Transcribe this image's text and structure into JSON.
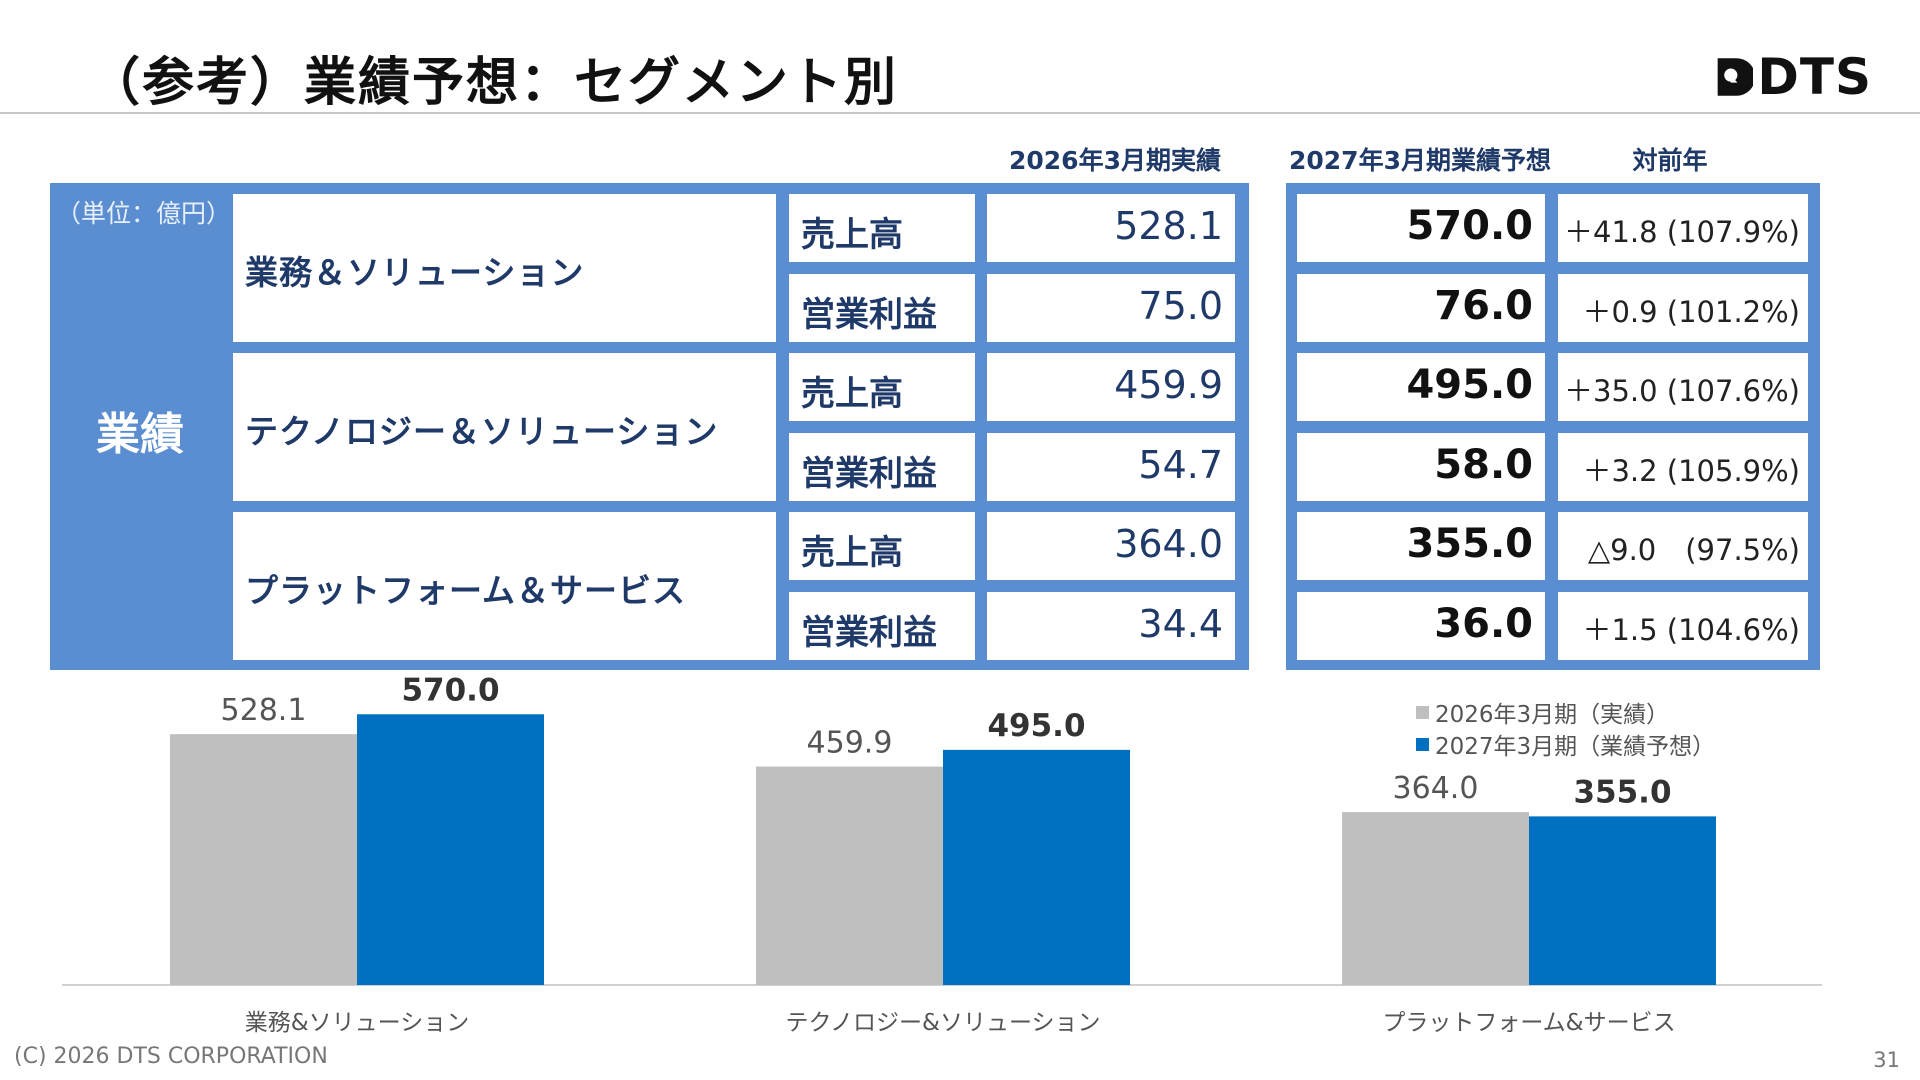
{
  "title": "（参考）業績予想：セグメント別",
  "logo": {
    "text": "DTS"
  },
  "header": {
    "actual": "2026年3月期実績",
    "forecast": "2027年3月期業績予想",
    "yoy": "対前年"
  },
  "unit": "（単位：億円）",
  "row_group_label": "業績",
  "segments": [
    {
      "name": "業務＆ソリューション",
      "rows": [
        {
          "metric": "売上高",
          "actual": "528.1",
          "forecast": "570.0",
          "yoy": "＋41.8 (107.9%)"
        },
        {
          "metric": "営業利益",
          "actual": "75.0",
          "forecast": "76.0",
          "yoy": "＋0.9 (101.2%)"
        }
      ]
    },
    {
      "name": "テクノロジー＆ソリューション",
      "rows": [
        {
          "metric": "売上高",
          "actual": "459.9",
          "forecast": "495.0",
          "yoy": "＋35.0 (107.6%)"
        },
        {
          "metric": "営業利益",
          "actual": "54.7",
          "forecast": "58.0",
          "yoy": "＋3.2 (105.9%)"
        }
      ]
    },
    {
      "name": "プラットフォーム＆サービス",
      "rows": [
        {
          "metric": "売上高",
          "actual": "364.0",
          "forecast": "355.0",
          "yoy": "△9.0　(97.5%)"
        },
        {
          "metric": "営業利益",
          "actual": "34.4",
          "forecast": "36.0",
          "yoy": "＋1.5 (104.6%)"
        }
      ]
    }
  ],
  "chart_data": {
    "type": "bar",
    "categories": [
      "業務&ソリューション",
      "テクノロジー&ソリューション",
      "プラットフォーム&サービス"
    ],
    "series": [
      {
        "name": "2026年3月期（実績）",
        "values": [
          528.1,
          459.9,
          364.0
        ],
        "color": "#bfbfbf",
        "label_color": "#555555",
        "label_bold": false
      },
      {
        "name": "2027年3月期（業績予想）",
        "values": [
          570.0,
          495.0,
          355.0
        ],
        "color": "#0070c0",
        "label_color": "#333333",
        "label_bold": true
      }
    ],
    "ylim": [
      0,
      700
    ],
    "grid": false,
    "legend": "top-right",
    "title": "",
    "xlabel": "",
    "ylabel": ""
  },
  "footer": {
    "copyright": "(C) 2026 DTS CORPORATION",
    "page": "31"
  }
}
